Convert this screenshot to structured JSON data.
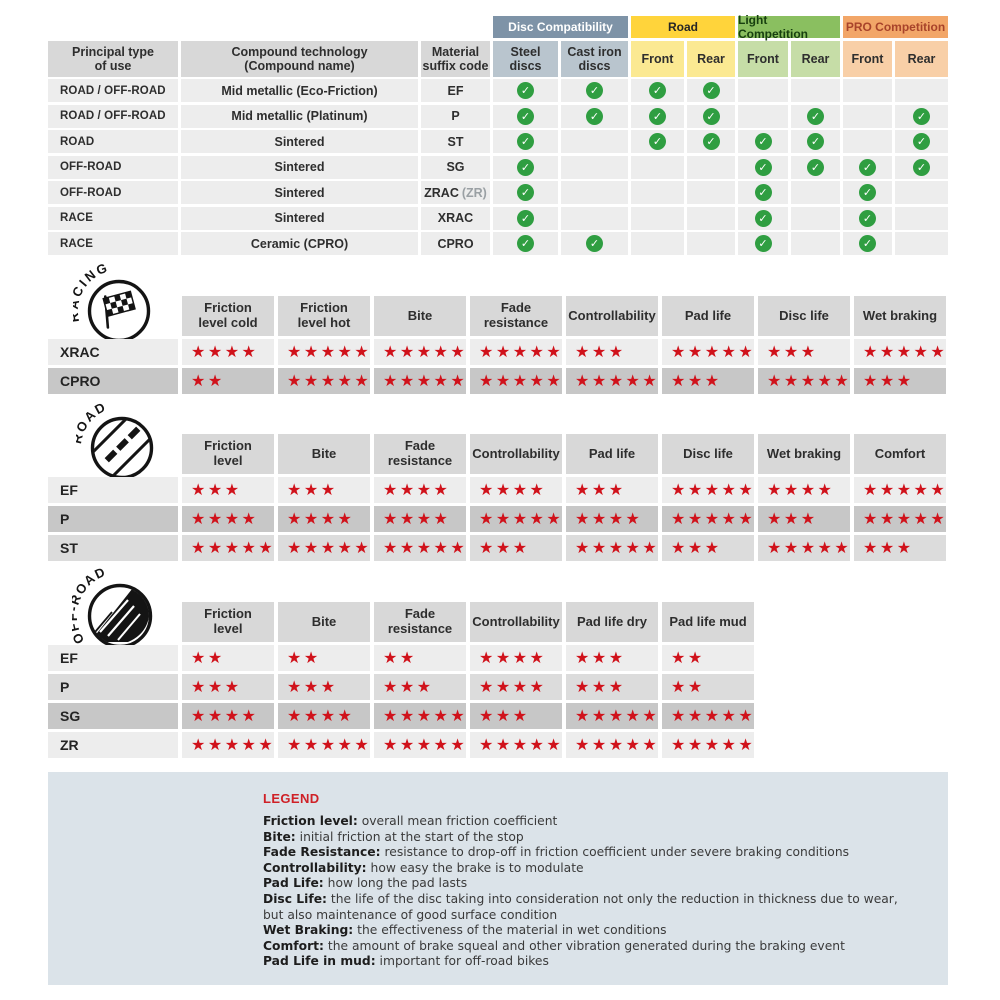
{
  "colors": {
    "star_red": "#d0121b",
    "check_green": "#2f9e41",
    "slate_header": "#7e93a7",
    "slate_subheader": "#b9c5ce",
    "road_yellow": "#ffd43b",
    "road_yellow_light": "#fbe992",
    "light_comp_green": "#8abf60",
    "light_comp_green_light": "#c6dda7",
    "pro_comp_orange": "#f2a668",
    "pro_comp_orange_light": "#f8cfa7",
    "header_gray": "#d8d8d8",
    "row_light": "#ededed",
    "row_medium": "#dcdcdc",
    "row_dark": "#c7c7c7",
    "legend_bg": "#dbe3e9",
    "legend_title_red": "#cf2127"
  },
  "chart_data": [
    {
      "type": "table",
      "name": "compatibility-matrix",
      "groups": [
        {
          "label": "Disc Compatibility",
          "color": "slate"
        },
        {
          "label": "Road",
          "color": "yellow"
        },
        {
          "label": "Light Competition",
          "color": "green"
        },
        {
          "label": "PRO Competition",
          "color": "orange"
        }
      ],
      "columns": [
        {
          "label": "Principal type\nof use",
          "bg": "gray"
        },
        {
          "label": "Compound technology\n(Compound name)",
          "bg": "gray"
        },
        {
          "label": "Material\nsuffix code",
          "bg": "gray"
        },
        {
          "label": "Steel\ndiscs",
          "bg": "slate"
        },
        {
          "label": "Cast iron\ndiscs",
          "bg": "slate"
        },
        {
          "label": "Front",
          "bg": "yellow"
        },
        {
          "label": "Rear",
          "bg": "yellow"
        },
        {
          "label": "Front",
          "bg": "green"
        },
        {
          "label": "Rear",
          "bg": "green"
        },
        {
          "label": "Front",
          "bg": "orange"
        },
        {
          "label": "Rear",
          "bg": "orange"
        }
      ],
      "rows": [
        {
          "use": "ROAD / OFF-ROAD",
          "technology": "Mid metallic (Eco-Friction)",
          "code": "EF",
          "code_note": "",
          "checks": [
            1,
            1,
            1,
            1,
            0,
            0,
            0,
            0
          ]
        },
        {
          "use": "ROAD / OFF-ROAD",
          "technology": "Mid metallic (Platinum)",
          "code": "P",
          "code_note": "",
          "checks": [
            1,
            1,
            1,
            1,
            0,
            1,
            0,
            1
          ]
        },
        {
          "use": "ROAD",
          "technology": "Sintered",
          "code": "ST",
          "code_note": "",
          "checks": [
            1,
            0,
            1,
            1,
            1,
            1,
            0,
            1
          ]
        },
        {
          "use": "OFF-ROAD",
          "technology": "Sintered",
          "code": "SG",
          "code_note": "",
          "checks": [
            1,
            0,
            0,
            0,
            1,
            1,
            1,
            1
          ]
        },
        {
          "use": "OFF-ROAD",
          "technology": "Sintered",
          "code": "ZRAC",
          "code_note": "(ZR)",
          "checks": [
            1,
            0,
            0,
            0,
            1,
            0,
            1,
            0
          ]
        },
        {
          "use": "RACE",
          "technology": "Sintered",
          "code": "XRAC",
          "code_note": "",
          "checks": [
            1,
            0,
            0,
            0,
            1,
            0,
            1,
            0
          ]
        },
        {
          "use": "RACE",
          "technology": "Ceramic (CPRO)",
          "code": "CPRO",
          "code_note": "",
          "checks": [
            1,
            1,
            0,
            0,
            1,
            0,
            1,
            0
          ]
        }
      ]
    },
    {
      "type": "table",
      "name": "racing-ratings",
      "icon_label": "RACING",
      "max_stars": 5,
      "columns": [
        "Friction\nlevel cold",
        "Friction\nlevel hot",
        "Bite",
        "Fade\nresistance",
        "Controllability",
        "Pad life",
        "Disc life",
        "Wet braking"
      ],
      "rows": [
        {
          "code": "XRAC",
          "shade": "light",
          "stars": [
            4,
            5,
            5,
            5,
            3,
            5,
            3,
            5
          ]
        },
        {
          "code": "CPRO",
          "shade": "dark",
          "stars": [
            2,
            5,
            5,
            5,
            5,
            3,
            5,
            3
          ]
        }
      ]
    },
    {
      "type": "table",
      "name": "road-ratings",
      "icon_label": "ROAD",
      "max_stars": 5,
      "columns": [
        "Friction\nlevel",
        "Bite",
        "Fade\nresistance",
        "Controllability",
        "Pad life",
        "Disc life",
        "Wet braking",
        "Comfort"
      ],
      "rows": [
        {
          "code": "EF",
          "shade": "light",
          "stars": [
            3,
            3,
            4,
            4,
            3,
            5,
            4,
            5
          ]
        },
        {
          "code": "P",
          "shade": "dark",
          "stars": [
            4,
            4,
            4,
            5,
            4,
            5,
            3,
            5
          ]
        },
        {
          "code": "ST",
          "shade": "medium",
          "stars": [
            5,
            5,
            5,
            3,
            5,
            3,
            5,
            3
          ]
        }
      ]
    },
    {
      "type": "table",
      "name": "offroad-ratings",
      "icon_label": "OFF-ROAD",
      "max_stars": 5,
      "columns": [
        "Friction\nlevel",
        "Bite",
        "Fade\nresistance",
        "Controllability",
        "Pad life dry",
        "Pad life mud"
      ],
      "rows": [
        {
          "code": "EF",
          "shade": "light",
          "stars": [
            2,
            2,
            2,
            4,
            3,
            2
          ]
        },
        {
          "code": "P",
          "shade": "medium",
          "stars": [
            3,
            3,
            3,
            4,
            3,
            2
          ]
        },
        {
          "code": "SG",
          "shade": "dark",
          "stars": [
            4,
            4,
            5,
            3,
            5,
            5
          ]
        },
        {
          "code": "ZR",
          "shade": "light",
          "stars": [
            5,
            5,
            5,
            5,
            5,
            5
          ]
        }
      ]
    }
  ],
  "legend": {
    "title": "LEGEND",
    "items": [
      {
        "term": "Friction level",
        "desc": "overall mean friction coefficient"
      },
      {
        "term": "Bite",
        "desc": "initial friction at the start of the stop"
      },
      {
        "term": "Fade Resistance",
        "desc": "resistance to drop-off in friction coefficient under severe braking conditions"
      },
      {
        "term": "Controllability",
        "desc": "how easy the brake is to modulate"
      },
      {
        "term": "Pad Life",
        "desc": "how long the pad lasts"
      },
      {
        "term": "Disc Life",
        "desc": "the life of the disc taking into consideration not only the reduction in thickness due to wear,"
      },
      {
        "term": "",
        "desc": "but also maintenance of good surface condition"
      },
      {
        "term": "Wet Braking",
        "desc": "the effectiveness of the material in wet conditions"
      },
      {
        "term": "Comfort",
        "desc": "the amount of brake squeal and other vibration generated during the braking event"
      },
      {
        "term": "Pad Life in mud",
        "desc": "important for off-road bikes"
      }
    ]
  }
}
